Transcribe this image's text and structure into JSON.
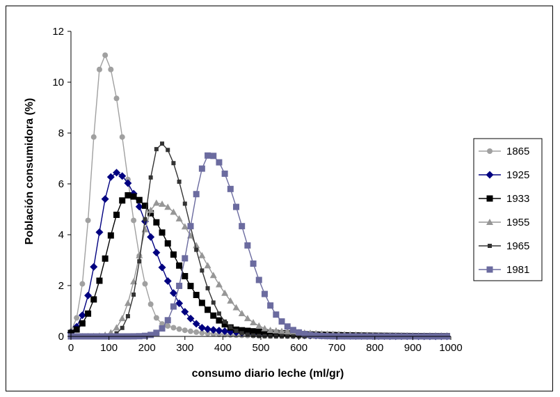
{
  "chart_data": {
    "type": "line",
    "title": "",
    "xlabel": "consumo diario leche (ml/gr)",
    "ylabel": "Población consumidora (%)",
    "xlim": [
      0,
      1000
    ],
    "ylim": [
      0,
      12
    ],
    "x_ticks": [
      "0",
      "100",
      "200",
      "300",
      "400",
      "500",
      "600",
      "700",
      "800",
      "900",
      "1000"
    ],
    "y_ticks": [
      "0",
      "2",
      "4",
      "6",
      "8",
      "10",
      "12"
    ],
    "grid": false,
    "legend_position": "right",
    "x_step": 15,
    "series": [
      {
        "name": "1865",
        "color": "#a0a0a0",
        "marker": "circle",
        "peak_x": 85,
        "peak_y": 11.1,
        "sigma_left": 30,
        "sigma_right": 60,
        "tail": "heavy"
      },
      {
        "name": "1925",
        "color": "#000080",
        "marker": "diamond",
        "peak_x": 115,
        "peak_y": 6.45,
        "sigma_left": 42,
        "sigma_right": 95,
        "tail": "heavy"
      },
      {
        "name": "1933",
        "color": "#000000",
        "marker": "square",
        "peak_x": 150,
        "peak_y": 5.55,
        "sigma_left": 55,
        "sigma_right": 115,
        "tail": "heavy"
      },
      {
        "name": "1955",
        "color": "#969696",
        "marker": "triangle",
        "peak_x": 225,
        "peak_y": 5.25,
        "sigma_left": 45,
        "sigma_right": 120,
        "tail": "heavy"
      },
      {
        "name": "1965",
        "color": "#333333",
        "marker": "small-square",
        "peak_x": 235,
        "peak_y": 7.6,
        "sigma_left": 40,
        "sigma_right": 75,
        "tail": "light"
      },
      {
        "name": "1981",
        "color": "#6b6b9f",
        "marker": "square",
        "peak_x": 365,
        "peak_y": 7.15,
        "sigma_left": 50,
        "sigma_right": 85,
        "tail": "light"
      }
    ]
  }
}
